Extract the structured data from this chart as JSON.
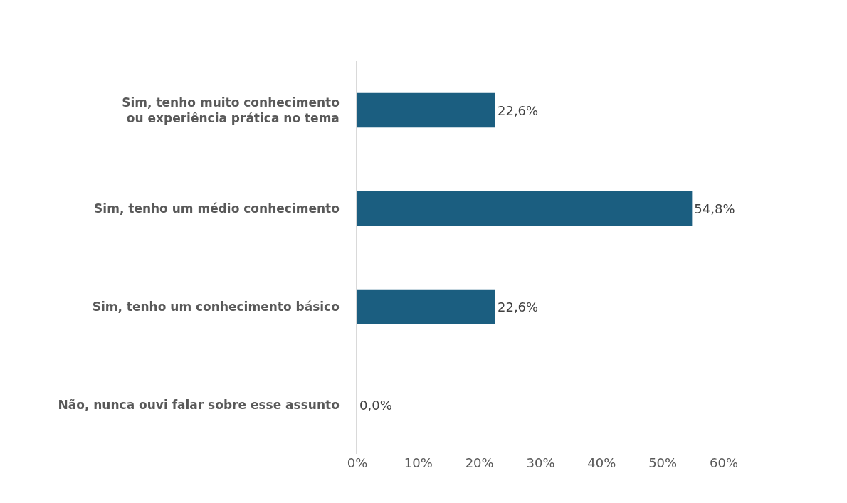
{
  "chart_data": {
    "type": "bar",
    "orientation": "horizontal",
    "categories": [
      "Sim, tenho muito conhecimento ou experiência prática no tema",
      "Sim, tenho um médio conhecimento",
      "Sim, tenho um conhecimento básico",
      "Não, nunca ouvi falar sobre esse assunto"
    ],
    "values": [
      22.6,
      54.8,
      22.6,
      0.0
    ],
    "value_labels": [
      "22,6%",
      "54,8%",
      "22,6%",
      "0,0%"
    ],
    "color": "#1b5e80",
    "xlim": [
      0,
      60
    ],
    "xticks": [
      {
        "value": 0,
        "label": "0%"
      },
      {
        "value": 10,
        "label": "10%"
      },
      {
        "value": 20,
        "label": "20%"
      },
      {
        "value": 30,
        "label": "30%"
      },
      {
        "value": 40,
        "label": "40%"
      },
      {
        "value": 50,
        "label": "50%"
      },
      {
        "value": 60,
        "label": "60%"
      }
    ],
    "grid": false
  }
}
